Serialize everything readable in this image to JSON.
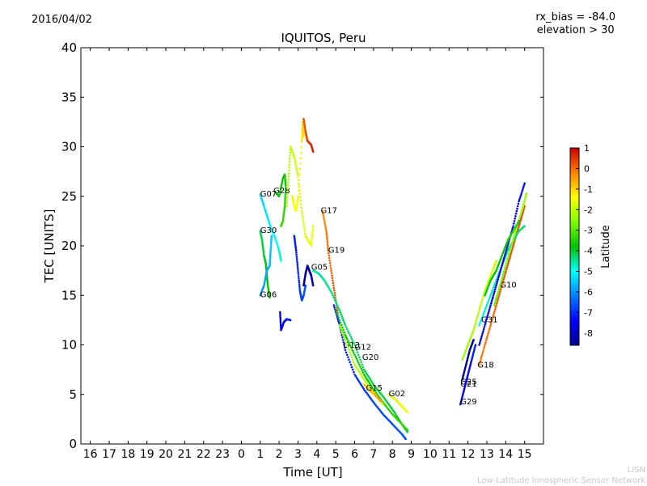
{
  "header": {
    "date": "2016/04/02",
    "rx_bias": "rx_bias = -84.0",
    "elevation": "elevation > 30"
  },
  "footer": {
    "line1": "LISN",
    "line2": "Low-Latitude Ionospheric Sensor Network"
  },
  "chart_data": {
    "type": "scatter",
    "title": "IQUITOS, Peru",
    "xlabel": "Time [UT]",
    "ylabel": "TEC [UNITS]",
    "x_tick_labels": [
      "16",
      "17",
      "18",
      "19",
      "20",
      "21",
      "22",
      "23",
      "0",
      "1",
      "2",
      "3",
      "4",
      "5",
      "6",
      "7",
      "8",
      "9",
      "10",
      "11",
      "12",
      "13",
      "14",
      "15"
    ],
    "xlim": [
      -8.5,
      16.0
    ],
    "ylim": [
      0,
      40
    ],
    "y_ticks": [
      0,
      5,
      10,
      15,
      20,
      25,
      30,
      35,
      40
    ],
    "grid": false,
    "colorbar": {
      "label": "Latitude",
      "range": [
        -8.6,
        1.0
      ],
      "ticks": [
        1,
        0,
        -1,
        -2,
        -3,
        -4,
        -5,
        -6,
        -7,
        -8
      ]
    },
    "series": [
      {
        "name": "G07",
        "label_at": [
          1.0,
          25.0
        ],
        "lat": -5.0,
        "points": [
          [
            1.0,
            25.2
          ],
          [
            1.2,
            24.0
          ],
          [
            1.4,
            22.8
          ],
          [
            1.6,
            21.6
          ],
          [
            1.8,
            20.8
          ],
          [
            2.0,
            19.5
          ],
          [
            2.1,
            18.5
          ]
        ]
      },
      {
        "name": "G28",
        "label_at": [
          1.7,
          25.3
        ],
        "lat": -3.5,
        "points": [
          [
            1.8,
            25.4
          ],
          [
            2.0,
            25.0
          ],
          [
            2.2,
            26.8
          ],
          [
            2.3,
            27.2
          ],
          [
            2.35,
            26.0
          ],
          [
            2.3,
            24.0
          ],
          [
            2.2,
            22.5
          ],
          [
            2.1,
            22.0
          ]
        ]
      },
      {
        "name": "G30",
        "label_at": [
          1.0,
          21.3
        ],
        "lat": -3.8,
        "points": [
          [
            1.0,
            21.5
          ],
          [
            1.1,
            20.5
          ],
          [
            1.2,
            19.0
          ],
          [
            1.3,
            18.2
          ],
          [
            1.35,
            17.0
          ],
          [
            1.4,
            16.0
          ],
          [
            1.5,
            14.8
          ]
        ]
      },
      {
        "name": "G06",
        "label_at": [
          1.0,
          14.8
        ],
        "lat": -5.6,
        "points": [
          [
            1.0,
            15.0
          ],
          [
            1.2,
            16.0
          ],
          [
            1.35,
            17.5
          ],
          [
            1.5,
            18.0
          ],
          [
            1.55,
            19.5
          ],
          [
            1.6,
            21.0
          ]
        ]
      },
      {
        "name": "G_x1",
        "label_at": null,
        "lat": -1.8,
        "points": [
          [
            2.4,
            24.0
          ],
          [
            2.5,
            27.0
          ],
          [
            2.6,
            30.0
          ],
          [
            2.8,
            29.0
          ],
          [
            3.0,
            27.0
          ],
          [
            3.2,
            23.5
          ],
          [
            3.4,
            21.0
          ],
          [
            3.7,
            20.0
          ],
          [
            3.8,
            22.0
          ]
        ]
      },
      {
        "name": "G_x2",
        "label_at": null,
        "lat": -1.2,
        "points": [
          [
            2.7,
            25.0
          ],
          [
            2.8,
            24.0
          ],
          [
            2.9,
            23.5
          ],
          [
            3.0,
            25.0
          ],
          [
            3.2,
            30.5
          ],
          [
            3.25,
            32.5
          ],
          [
            3.3,
            31.0
          ]
        ]
      },
      {
        "name": "G_x3",
        "label_at": null,
        "lat": 0.6,
        "points": [
          [
            3.3,
            32.8
          ],
          [
            3.4,
            31.5
          ],
          [
            3.5,
            30.6
          ],
          [
            3.7,
            30.2
          ],
          [
            3.8,
            29.5
          ]
        ]
      },
      {
        "name": "G_x4",
        "label_at": null,
        "lat": -6.8,
        "points": [
          [
            2.8,
            21.0
          ],
          [
            2.9,
            19.5
          ],
          [
            3.0,
            17.5
          ],
          [
            3.1,
            15.5
          ],
          [
            3.2,
            14.5
          ],
          [
            3.3,
            15.0
          ],
          [
            3.4,
            16.0
          ]
        ]
      },
      {
        "name": "G_x5",
        "label_at": null,
        "lat": -7.2,
        "points": [
          [
            2.05,
            13.3
          ],
          [
            2.1,
            11.5
          ],
          [
            2.25,
            12.3
          ],
          [
            2.4,
            12.6
          ],
          [
            2.6,
            12.5
          ]
        ]
      },
      {
        "name": "G05",
        "label_at": [
          3.7,
          17.6
        ],
        "lat": -8.2,
        "points": [
          [
            3.3,
            16.0
          ],
          [
            3.4,
            17.2
          ],
          [
            3.5,
            18.0
          ],
          [
            3.6,
            17.5
          ],
          [
            3.7,
            17.0
          ],
          [
            3.8,
            16.0
          ]
        ]
      },
      {
        "name": "G17",
        "label_at": [
          4.2,
          23.3
        ],
        "lat": 0.2,
        "points": [
          [
            4.3,
            23.5
          ],
          [
            4.5,
            21.5
          ],
          [
            4.6,
            19.5
          ],
          [
            4.8,
            17.0
          ],
          [
            5.0,
            14.5
          ],
          [
            5.2,
            12.0
          ]
        ]
      },
      {
        "name": "G19",
        "label_at": [
          4.6,
          19.3
        ],
        "lat": -4.2,
        "points": [
          [
            3.8,
            17.5
          ],
          [
            4.1,
            17.2
          ],
          [
            4.4,
            16.5
          ],
          [
            4.8,
            15.2
          ],
          [
            5.2,
            13.5
          ],
          [
            5.5,
            12.0
          ],
          [
            6.0,
            10.0
          ],
          [
            6.5,
            7.5
          ],
          [
            7.0,
            6.0
          ],
          [
            7.5,
            4.8
          ],
          [
            8.0,
            3.5
          ],
          [
            8.5,
            2.0
          ],
          [
            8.8,
            1.2
          ]
        ]
      },
      {
        "name": "G13",
        "label_at": [
          5.4,
          9.7
        ],
        "lat": -6.8,
        "points": [
          [
            4.9,
            14.0
          ],
          [
            5.2,
            12.0
          ],
          [
            5.5,
            9.5
          ],
          [
            6.0,
            7.0
          ],
          [
            6.5,
            5.5
          ],
          [
            7.0,
            4.2
          ],
          [
            7.5,
            3.0
          ],
          [
            8.0,
            2.0
          ],
          [
            8.5,
            1.0
          ],
          [
            8.7,
            0.5
          ]
        ]
      },
      {
        "name": "G12",
        "label_at": [
          6.0,
          9.5
        ],
        "lat": -3.5,
        "points": [
          [
            5.0,
            13.5
          ],
          [
            5.5,
            11.0
          ],
          [
            6.0,
            9.0
          ],
          [
            6.5,
            7.0
          ],
          [
            7.0,
            5.5
          ],
          [
            7.5,
            4.2
          ],
          [
            8.0,
            3.0
          ],
          [
            8.5,
            2.0
          ],
          [
            8.8,
            1.4
          ]
        ]
      },
      {
        "name": "G20",
        "label_at": [
          6.4,
          8.5
        ],
        "lat": -2.0,
        "points": [
          [
            5.2,
            12.0
          ],
          [
            5.5,
            10.5
          ],
          [
            6.0,
            8.0
          ],
          [
            6.5,
            6.5
          ],
          [
            7.0,
            5.2
          ],
          [
            7.5,
            4.0
          ]
        ]
      },
      {
        "name": "G15",
        "label_at": [
          6.6,
          5.4
        ],
        "lat": -0.5,
        "points": [
          [
            6.5,
            6.0
          ],
          [
            6.8,
            5.4
          ],
          [
            7.1,
            4.9
          ],
          [
            7.4,
            4.3
          ]
        ]
      },
      {
        "name": "G02",
        "label_at": [
          7.8,
          4.8
        ],
        "lat": -1.5,
        "points": [
          [
            7.8,
            5.0
          ],
          [
            8.1,
            4.6
          ],
          [
            8.4,
            4.0
          ],
          [
            8.7,
            3.4
          ],
          [
            8.8,
            3.2
          ]
        ]
      },
      {
        "name": "G25",
        "label_at": [
          11.6,
          6.0
        ],
        "lat": -8.4,
        "points": [
          [
            11.7,
            6.5
          ],
          [
            11.9,
            8.0
          ],
          [
            12.1,
            9.5
          ],
          [
            12.3,
            10.5
          ]
        ]
      },
      {
        "name": "G21",
        "label_at": [
          11.6,
          5.8
        ],
        "lat": -2.0,
        "points": [
          [
            11.7,
            8.5
          ],
          [
            12.0,
            10.0
          ],
          [
            12.3,
            11.5
          ],
          [
            12.6,
            13.5
          ],
          [
            12.9,
            15.5
          ],
          [
            13.2,
            17.0
          ],
          [
            13.5,
            18.5
          ]
        ]
      },
      {
        "name": "G29",
        "label_at": [
          11.6,
          4.0
        ],
        "lat": -7.2,
        "points": [
          [
            11.6,
            4.0
          ],
          [
            11.8,
            5.5
          ],
          [
            12.0,
            7.0
          ],
          [
            12.2,
            8.5
          ],
          [
            12.4,
            10.0
          ]
        ]
      },
      {
        "name": "G18",
        "label_at": [
          12.5,
          7.7
        ],
        "lat": 0.3,
        "points": [
          [
            12.6,
            8.0
          ],
          [
            12.9,
            10.0
          ],
          [
            13.2,
            12.0
          ],
          [
            13.5,
            14.0
          ],
          [
            13.8,
            16.0
          ],
          [
            14.1,
            18.0
          ],
          [
            14.4,
            20.0
          ],
          [
            14.7,
            22.0
          ],
          [
            15.0,
            24.0
          ]
        ]
      },
      {
        "name": "G31",
        "label_at": [
          12.7,
          12.3
        ],
        "lat": -4.5,
        "points": [
          [
            12.6,
            12.0
          ],
          [
            12.9,
            13.5
          ],
          [
            13.2,
            15.0
          ],
          [
            13.5,
            16.5
          ],
          [
            13.8,
            18.0
          ],
          [
            14.1,
            19.5
          ],
          [
            14.4,
            20.5
          ],
          [
            14.7,
            21.5
          ],
          [
            15.0,
            22.0
          ]
        ]
      },
      {
        "name": "G10",
        "label_at": [
          13.7,
          15.8
        ],
        "lat": -7.5,
        "points": [
          [
            12.6,
            10.0
          ],
          [
            12.9,
            12.0
          ],
          [
            13.2,
            14.0
          ],
          [
            13.5,
            16.0
          ],
          [
            13.8,
            18.0
          ],
          [
            14.1,
            20.0
          ],
          [
            14.4,
            22.0
          ],
          [
            14.7,
            24.5
          ],
          [
            15.0,
            26.3
          ]
        ]
      },
      {
        "name": "G_x6",
        "label_at": null,
        "lat": -2.5,
        "points": [
          [
            13.4,
            14.0
          ],
          [
            13.7,
            16.0
          ],
          [
            14.0,
            18.0
          ],
          [
            14.3,
            20.0
          ],
          [
            14.6,
            22.0
          ],
          [
            14.9,
            23.8
          ],
          [
            15.1,
            25.3
          ]
        ]
      },
      {
        "name": "G_x7",
        "label_at": null,
        "lat": -3.6,
        "points": [
          [
            12.9,
            15.0
          ],
          [
            13.2,
            16.5
          ],
          [
            13.5,
            17.5
          ],
          [
            13.8,
            19.0
          ],
          [
            14.1,
            20.5
          ],
          [
            14.4,
            21.5
          ],
          [
            14.7,
            22.5
          ]
        ]
      }
    ]
  }
}
